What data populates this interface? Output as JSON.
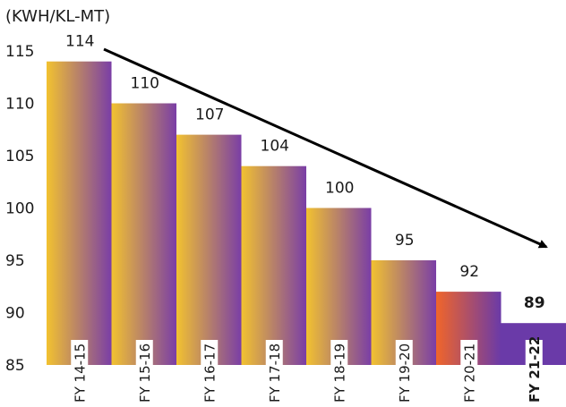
{
  "chart_data": {
    "type": "bar",
    "title": "",
    "ylabel": "(KWH/KL-MT)",
    "xlabel": "",
    "ylim": [
      85,
      115
    ],
    "yticks": [
      85,
      90,
      95,
      100,
      105,
      110,
      115
    ],
    "categories": [
      "FY 14-15",
      "FY 15-16",
      "FY 16-17",
      "FY 17-18",
      "FY 18-19",
      "FY 19-20",
      "FY 20-21",
      "FY 21-22"
    ],
    "values": [
      114,
      110,
      107,
      104,
      100,
      95,
      92,
      89
    ],
    "highlight_last": true,
    "trend_arrow": true,
    "grid": false,
    "colors": {
      "gradient_start": "#f2c230",
      "gradient_end": "#7a3ea6",
      "fy2021_start": "#f0652a",
      "fy2021_end": "#6a3aa8",
      "last_bar": "#6a3aa8",
      "arrow": "#000000"
    }
  }
}
